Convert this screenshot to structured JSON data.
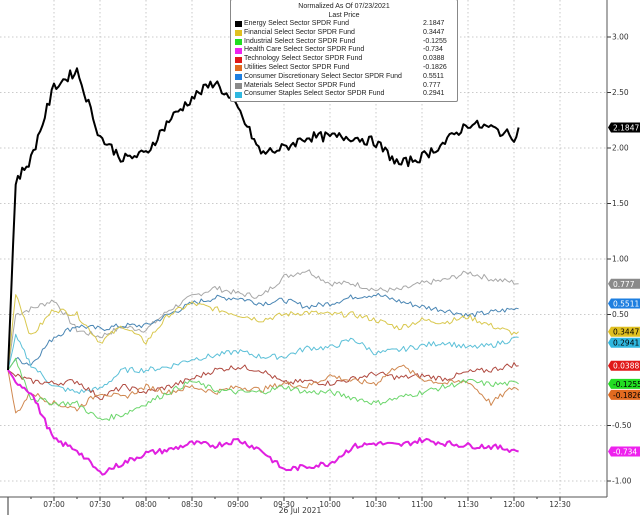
{
  "chart_data": {
    "type": "line",
    "title": "Normalized As Of 07/23/2021",
    "subtitle": "Last Price",
    "xlabel": "26 Jul 2021",
    "ylabel": "",
    "x": [
      "06:30",
      "06:35",
      "06:45",
      "07:00",
      "07:15",
      "07:30",
      "07:45",
      "08:00",
      "08:15",
      "08:30",
      "08:45",
      "09:00",
      "09:15",
      "09:30",
      "09:45",
      "10:00",
      "10:15",
      "10:30",
      "10:45",
      "11:00",
      "11:15",
      "11:30",
      "11:45",
      "12:00",
      "12:03"
    ],
    "x_ticks": [
      "07:00",
      "07:30",
      "08:00",
      "08:30",
      "09:00",
      "09:30",
      "10:00",
      "10:30",
      "11:00",
      "11:30",
      "12:00",
      "12:30"
    ],
    "y_ticks": [
      "3.00",
      "2.50",
      "2.00",
      "1.50",
      "1.00",
      "0.50",
      "-0.50",
      "-1.00"
    ],
    "ylim": [
      -1.15,
      3.35
    ],
    "grid": true,
    "legend_position": "top-center",
    "series": [
      {
        "name": "Energy Select Sector SPDR Fund",
        "last": "2.1847",
        "color": "#000000",
        "label_color": "#000000",
        "label_text": "#ffffff",
        "values": [
          0,
          1.7,
          1.9,
          2.55,
          2.7,
          2.1,
          1.9,
          1.95,
          2.25,
          2.45,
          2.6,
          2.35,
          1.95,
          2.0,
          2.1,
          2.1,
          2.1,
          2.05,
          1.85,
          1.92,
          2.05,
          2.22,
          2.18,
          2.1,
          2.1847
        ]
      },
      {
        "name": "Financial Select Sector SPDR Fund",
        "last": "0.3447",
        "color": "#d9c84e",
        "label_color": "#e0c020",
        "label_text": "#000000",
        "values": [
          0,
          0.7,
          0.3,
          0.55,
          0.5,
          0.25,
          0.4,
          0.25,
          0.5,
          0.6,
          0.55,
          0.5,
          0.45,
          0.5,
          0.52,
          0.5,
          0.5,
          0.45,
          0.38,
          0.45,
          0.43,
          0.48,
          0.4,
          0.33,
          0.3447
        ]
      },
      {
        "name": "Industrial Select Sector SPDR Fund",
        "last": "-0.1255",
        "color": "#6cd66c",
        "label_color": "#22dd22",
        "label_text": "#000000",
        "values": [
          0,
          0.1,
          -0.25,
          -0.3,
          -0.3,
          -0.45,
          -0.4,
          -0.3,
          -0.2,
          -0.1,
          -0.18,
          -0.2,
          -0.2,
          -0.15,
          -0.2,
          -0.2,
          -0.25,
          -0.3,
          -0.25,
          -0.2,
          -0.15,
          -0.1,
          -0.13,
          -0.12,
          -0.1255
        ]
      },
      {
        "name": "Health Care Select Sector SPDR Fund",
        "last": "-0.734",
        "color": "#e020e0",
        "label_color": "#ee22ee",
        "label_text": "#ffffff",
        "values": [
          0,
          -0.1,
          -0.2,
          -0.63,
          -0.72,
          -0.93,
          -0.84,
          -0.75,
          -0.72,
          -0.66,
          -0.68,
          -0.63,
          -0.72,
          -0.9,
          -0.87,
          -0.84,
          -0.69,
          -0.66,
          -0.68,
          -0.63,
          -0.66,
          -0.68,
          -0.69,
          -0.72,
          -0.734
        ]
      },
      {
        "name": "Technology Select Sector SPDR Fund",
        "last": "0.0388",
        "color": "#b04a40",
        "label_color": "#e01818",
        "label_text": "#ffffff",
        "values": [
          0,
          -0.05,
          -0.1,
          -0.12,
          -0.1,
          -0.25,
          -0.15,
          -0.2,
          -0.15,
          -0.08,
          0,
          0.03,
          0,
          -0.12,
          -0.1,
          -0.12,
          -0.08,
          -0.03,
          -0.07,
          -0.05,
          -0.08,
          -0.02,
          0,
          0.05,
          0.0388
        ]
      },
      {
        "name": "Utilities Select Sector SPDR Fund",
        "last": "-0.1826",
        "color": "#d08850",
        "label_color": "#e06a20",
        "label_text": "#000000",
        "values": [
          0,
          -0.4,
          -0.2,
          -0.3,
          -0.35,
          -0.2,
          -0.25,
          -0.15,
          -0.2,
          -0.15,
          -0.2,
          -0.15,
          -0.18,
          -0.12,
          -0.15,
          -0.05,
          -0.1,
          -0.12,
          0.05,
          -0.08,
          -0.12,
          -0.1,
          -0.3,
          -0.15,
          -0.1826
        ]
      },
      {
        "name": "Consumer Discretionary Select Sector SPDR Fund",
        "last": "0.5511",
        "color": "#4a86b4",
        "label_color": "#1e7fe0",
        "label_text": "#ffffff",
        "values": [
          0,
          0.1,
          0.05,
          0.3,
          0.4,
          0.37,
          0.4,
          0.4,
          0.5,
          0.6,
          0.65,
          0.65,
          0.6,
          0.63,
          0.57,
          0.6,
          0.66,
          0.68,
          0.62,
          0.57,
          0.54,
          0.49,
          0.52,
          0.55,
          0.5511
        ]
      },
      {
        "name": "Materials Select Sector SPDR Fund",
        "last": "0.777",
        "color": "#a8a8a8",
        "label_color": "#8a8a8a",
        "label_text": "#ffffff",
        "values": [
          0,
          0.5,
          0.55,
          0.63,
          0.36,
          0.3,
          0.39,
          0.36,
          0.54,
          0.66,
          0.74,
          0.69,
          0.66,
          0.84,
          0.9,
          0.78,
          0.78,
          0.72,
          0.72,
          0.78,
          0.81,
          0.88,
          0.82,
          0.79,
          0.777
        ]
      },
      {
        "name": "Consumer Staples Select Sector SPDR Fund",
        "last": "0.2941",
        "color": "#5cc0d8",
        "label_color": "#30b8e0",
        "label_text": "#000000",
        "values": [
          0,
          0.3,
          0.05,
          -0.15,
          -0.2,
          -0.17,
          0,
          0,
          0.03,
          0.1,
          0.13,
          0.17,
          0.12,
          0.12,
          0.2,
          0.2,
          0.28,
          0.15,
          0.18,
          0.22,
          0.25,
          0.2,
          0.22,
          0.28,
          0.2941
        ]
      }
    ]
  }
}
